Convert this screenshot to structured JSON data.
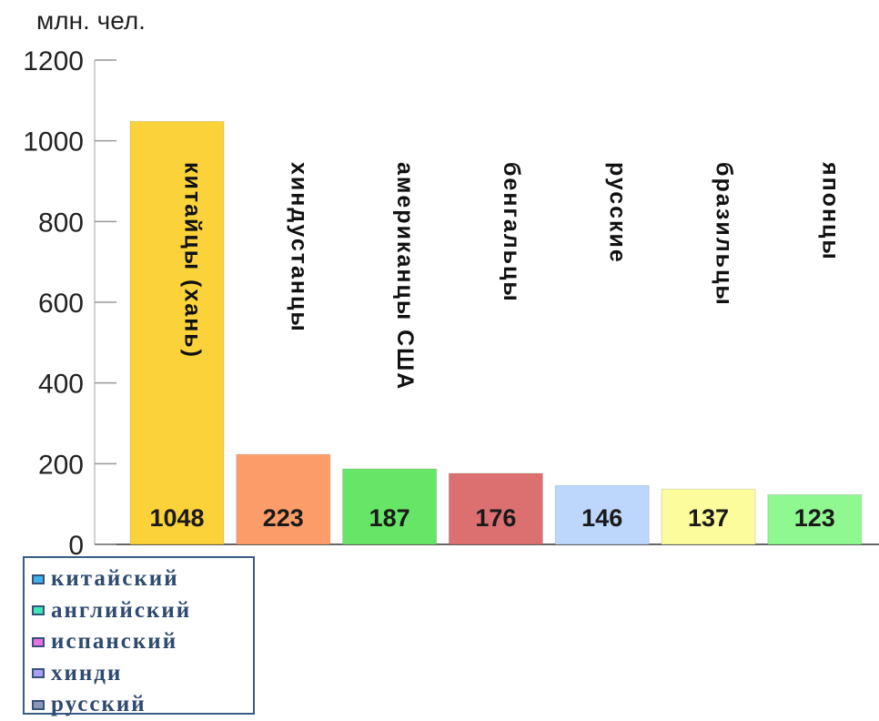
{
  "chart_data": {
    "type": "bar",
    "ylabel": "млн. чел.",
    "ylim": [
      0,
      1200
    ],
    "yticks": [
      "0",
      "200",
      "400",
      "600",
      "800",
      "1000",
      "1200"
    ],
    "grid": false,
    "categories": [
      "китайцы (хань)",
      "хиндустанцы",
      "американцы США",
      "бенгальцы",
      "русские",
      "бразильцы",
      "японцы"
    ],
    "values": [
      1048,
      223,
      187,
      176,
      146,
      137,
      123
    ],
    "colors": [
      "#fbd23a",
      "#fc9d69",
      "#67e567",
      "#dc7070",
      "#bcd6fc",
      "#fcfc9c",
      "#90f890"
    ],
    "legend_position": "bottom-left",
    "legend": [
      {
        "label": "китайский",
        "color": "#3fb0e8"
      },
      {
        "label": "английский",
        "color": "#40e8b8"
      },
      {
        "label": "испанский",
        "color": "#e670e0"
      },
      {
        "label": "хинди",
        "color": "#a8a0f4"
      },
      {
        "label": "русский",
        "color": "#8a96b8"
      }
    ]
  }
}
